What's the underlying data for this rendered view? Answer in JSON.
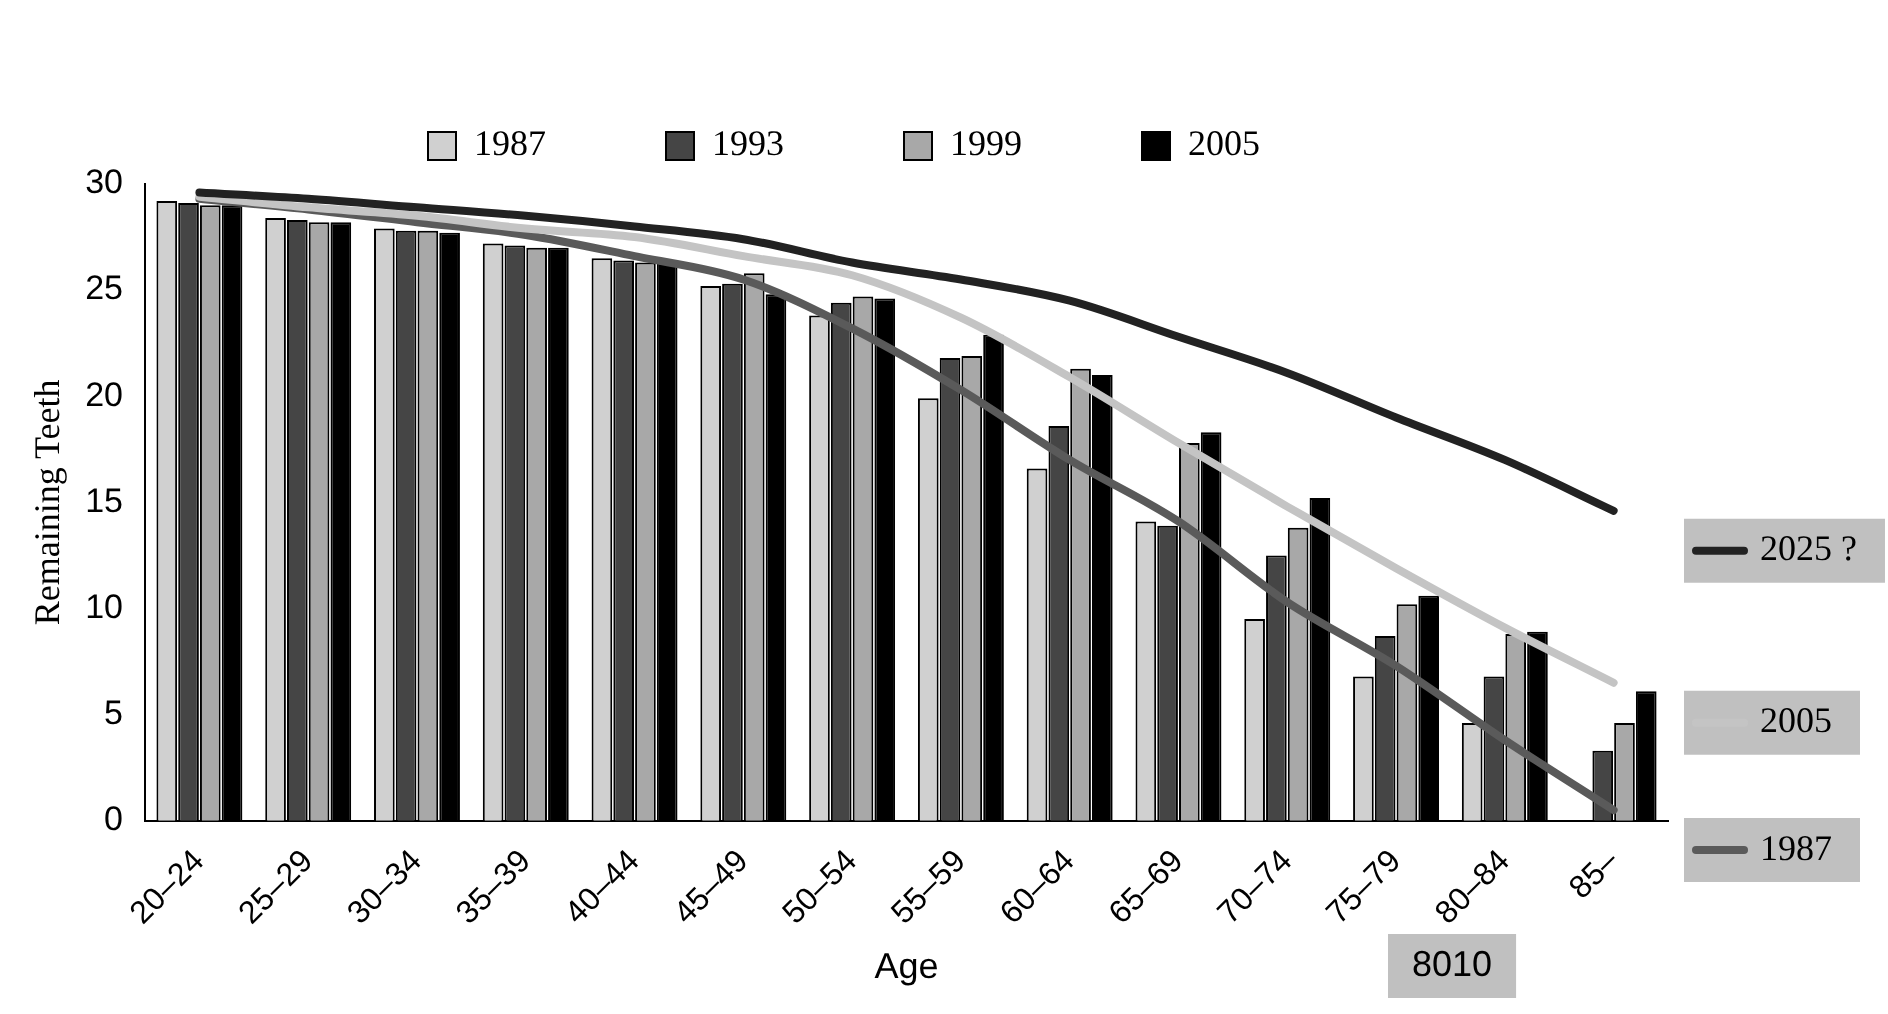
{
  "chart_data": {
    "type": "bar",
    "xlabel": "Age",
    "ylabel": "Remaining Teeth",
    "categories": [
      "20–24",
      "25–29",
      "30–34",
      "35–39",
      "40–44",
      "45–49",
      "50–54",
      "55–59",
      "60–64",
      "65–69",
      "70–74",
      "75–79",
      "80–84",
      "85–"
    ],
    "series": [
      {
        "name": "1987",
        "color": "#d0d0d0",
        "values": [
          29.2,
          28.4,
          27.9,
          27.2,
          26.5,
          25.2,
          23.8,
          19.9,
          16.6,
          14.1,
          9.5,
          6.8,
          4.6,
          null
        ]
      },
      {
        "name": "1993",
        "color": "#454545",
        "values": [
          29.1,
          28.3,
          27.8,
          27.1,
          26.4,
          25.3,
          24.4,
          21.8,
          18.6,
          13.9,
          12.5,
          8.7,
          6.8,
          3.3
        ]
      },
      {
        "name": "1999",
        "color": "#a8a8a8",
        "values": [
          29.0,
          28.2,
          27.8,
          27.0,
          26.3,
          25.8,
          24.7,
          21.9,
          21.3,
          17.8,
          13.8,
          10.2,
          8.8,
          4.6
        ]
      },
      {
        "name": "2005",
        "color": "#000000",
        "values": [
          29.0,
          28.2,
          27.7,
          27.0,
          26.3,
          24.8,
          24.6,
          22.9,
          21.0,
          18.3,
          15.2,
          10.6,
          8.9,
          6.1
        ]
      },
      {
        "name": "2025 ?",
        "type": "line",
        "color": "#222222",
        "values": [
          29.6,
          29.3,
          28.9,
          28.5,
          28.0,
          27.4,
          26.3,
          25.5,
          24.5,
          22.8,
          21.1,
          19.0,
          17.0,
          14.6
        ]
      },
      {
        "name": "2005",
        "type": "line",
        "color": "#c4c4c4",
        "values": [
          29.4,
          28.9,
          28.5,
          27.9,
          27.5,
          26.6,
          25.7,
          23.7,
          20.9,
          17.8,
          14.8,
          11.9,
          9.1,
          6.5
        ]
      },
      {
        "name": "1987",
        "type": "line",
        "color": "#5a5a5a",
        "values": [
          29.3,
          28.8,
          28.2,
          27.6,
          26.6,
          25.5,
          23.2,
          20.3,
          17.0,
          14.1,
          10.3,
          7.3,
          3.8,
          0.5
        ]
      }
    ],
    "ylim": [
      0,
      30
    ],
    "yticks": [
      0,
      5,
      10,
      15,
      20,
      25,
      30
    ],
    "grid": false,
    "legend": "top",
    "annotations": [
      "8010"
    ]
  }
}
